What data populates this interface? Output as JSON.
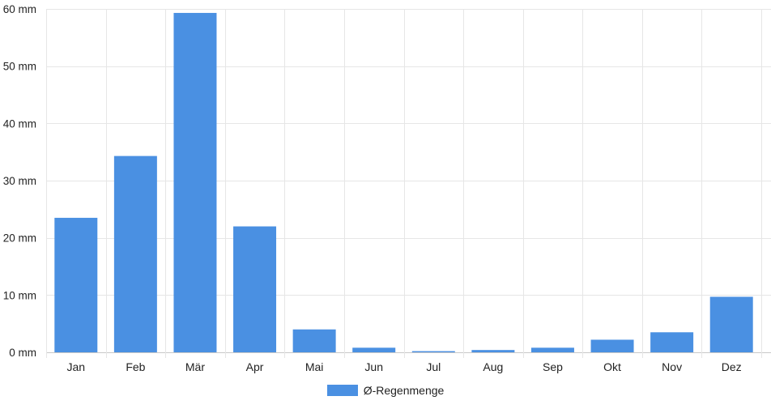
{
  "chart_data": {
    "type": "bar",
    "categories": [
      "Jan",
      "Feb",
      "Mär",
      "Apr",
      "Mai",
      "Jun",
      "Jul",
      "Aug",
      "Sep",
      "Okt",
      "Nov",
      "Dez"
    ],
    "series": [
      {
        "name": "Ø-Regenmenge",
        "color": "#4a90e2",
        "values": [
          23.5,
          34.3,
          59.3,
          22.0,
          4.0,
          0.8,
          0.2,
          0.4,
          0.8,
          2.2,
          3.5,
          9.7
        ]
      }
    ],
    "ylim": [
      0,
      60
    ],
    "yticks": [
      0,
      10,
      20,
      30,
      40,
      50,
      60
    ],
    "ytick_labels": [
      "0 mm",
      "10 mm",
      "20 mm",
      "30 mm",
      "40 mm",
      "50 mm",
      "60 mm"
    ],
    "grid": true,
    "legend_position": "bottom-center"
  }
}
